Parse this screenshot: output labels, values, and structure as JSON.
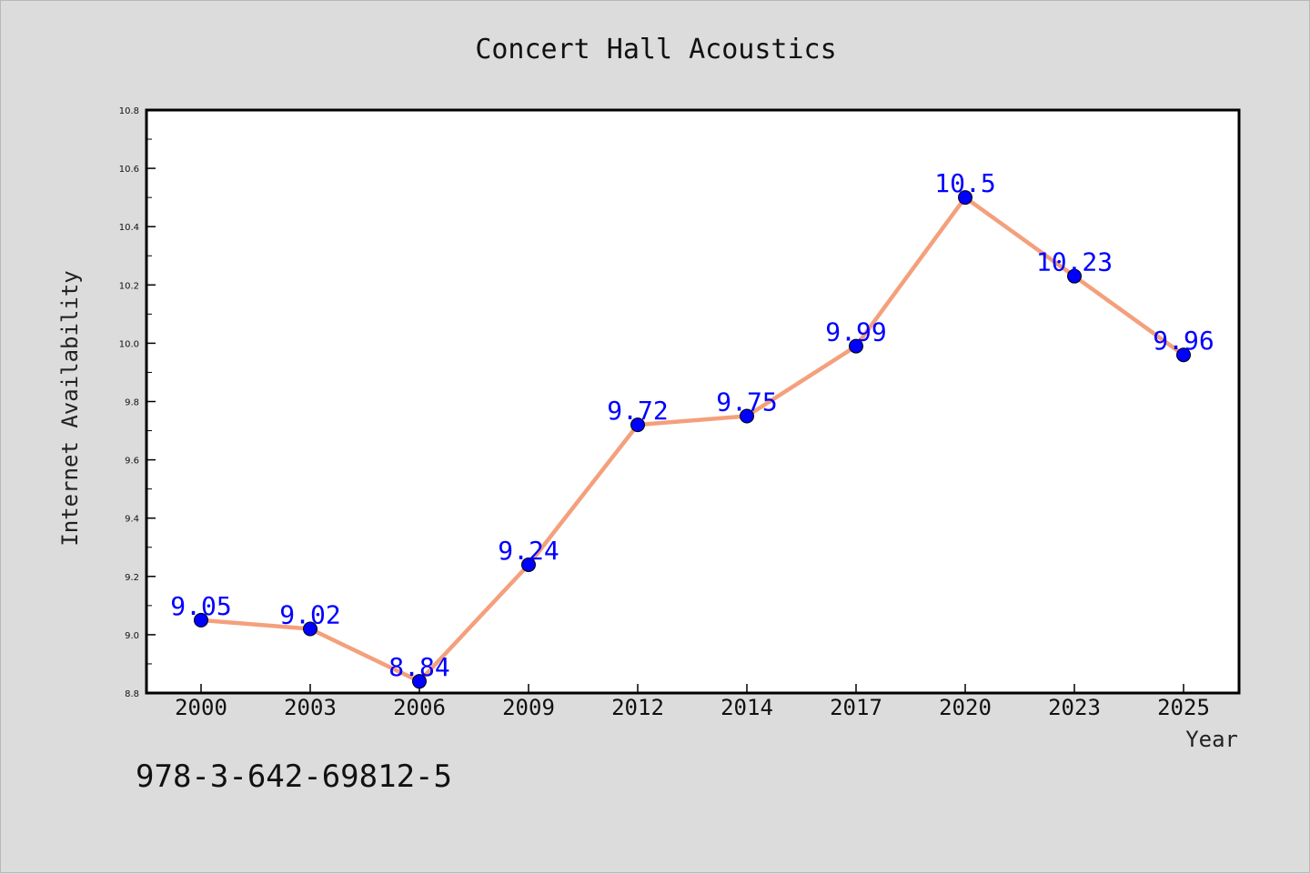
{
  "chart_data": {
    "type": "line",
    "title": "Concert Hall Acoustics",
    "xlabel": "Year",
    "ylabel": "Internet Availability",
    "categories": [
      "2000",
      "2003",
      "2006",
      "2009",
      "2012",
      "2014",
      "2017",
      "2020",
      "2023",
      "2025"
    ],
    "values": [
      9.05,
      9.02,
      8.84,
      9.24,
      9.72,
      9.75,
      9.99,
      10.5,
      10.23,
      9.96
    ],
    "data_labels": [
      "9.05",
      "9.02",
      "8.84",
      "9.24",
      "9.72",
      "9.75",
      "9.99",
      "10.5",
      "10.23",
      "9.96"
    ],
    "ylim": [
      8.8,
      10.8
    ],
    "yticks": [
      "8.8",
      "9.0",
      "9.2",
      "9.4",
      "9.6",
      "9.8",
      "10.0",
      "10.2",
      "10.4",
      "10.6",
      "10.8"
    ],
    "grid": false,
    "line_color": "#f4a07c",
    "marker_color": "#0000ff",
    "label_color": "#0000ff"
  },
  "footer": {
    "isbn": "978-3-642-69812-5"
  }
}
